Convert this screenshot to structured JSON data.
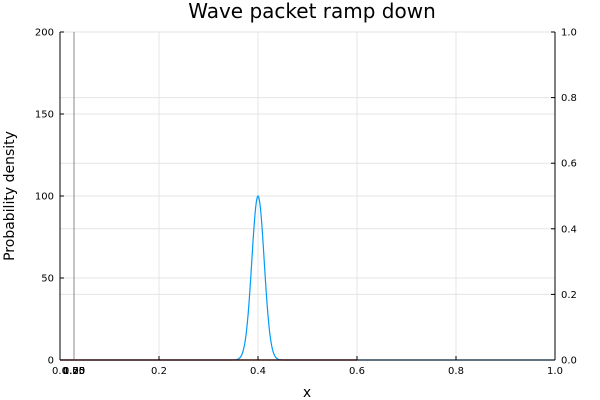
{
  "chart_data": {
    "type": "line",
    "title": "Wave packet ramp down",
    "xlabel": "x",
    "ylabel": "Probability density",
    "xlim": [
      0.0,
      1.0
    ],
    "ylim": [
      0,
      200
    ],
    "y2lim": [
      0.0,
      1.0
    ],
    "grid": true,
    "legend": "none",
    "x_ticks": [
      "0.0",
      "0.2",
      "0.4",
      "0.6",
      "0.8",
      "1.0"
    ],
    "y_ticks": [
      "0",
      "50",
      "100",
      "150",
      "200"
    ],
    "y2_ticks": [
      "0.0",
      "0.2",
      "0.4",
      "0.6",
      "0.8",
      "1.0"
    ],
    "x_overlap_tick_labels": [
      "0.00",
      "0.25",
      "0.50",
      "0.75",
      "1.00"
    ],
    "series": [
      {
        "kind": "gaussian",
        "center": 0.4,
        "peak": 100,
        "sigma": 0.0125,
        "color": "#009af9"
      },
      {
        "kind": "segment",
        "x": [
          0.0,
          0.6
        ],
        "y": [
          0,
          0
        ],
        "color": "#c0392b"
      },
      {
        "kind": "vertical",
        "x": 0.0,
        "y": [
          0,
          200
        ],
        "color": "#888888"
      }
    ]
  }
}
